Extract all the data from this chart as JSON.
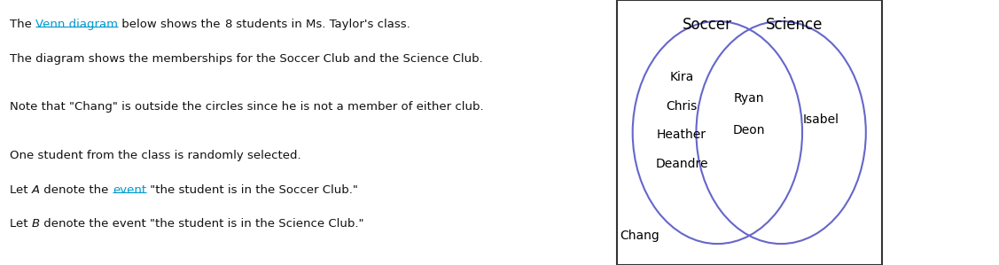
{
  "title_left": "Soccer",
  "title_right": "Science",
  "soccer_only": [
    "Kira",
    "Chris",
    "Heather",
    "Deandre"
  ],
  "intersection": [
    "Ryan",
    "Deon"
  ],
  "science_only": [
    "Isabel"
  ],
  "outside": [
    "Chang"
  ],
  "circle_color": "#6666cc",
  "circle_linewidth": 1.5,
  "text_color": "#000000",
  "background_color": "#ffffff",
  "box_color": "#333333",
  "font_size": 10,
  "label_font_size": 12,
  "link_color": "#0099cc",
  "fs_text": 9.5
}
